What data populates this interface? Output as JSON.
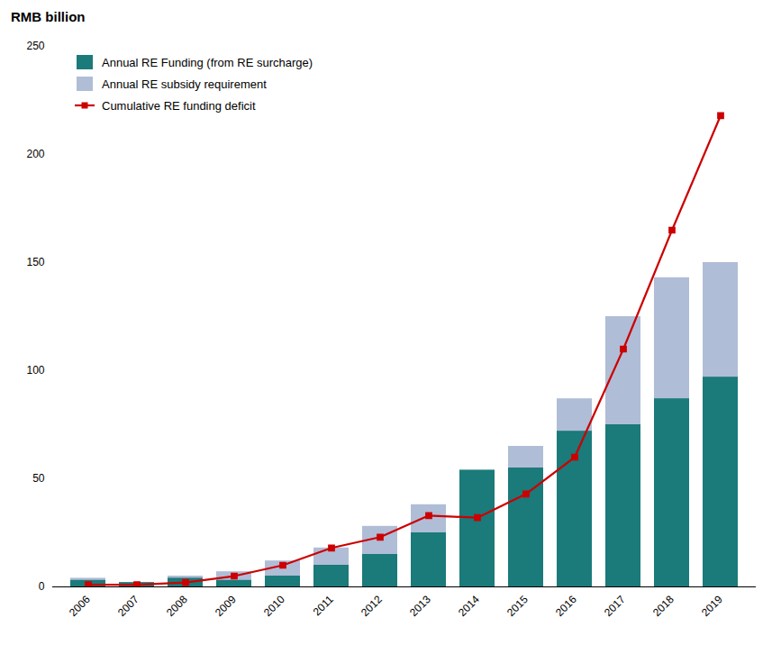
{
  "chart_data": {
    "type": "bar",
    "ylabel": "RMB billion",
    "categories": [
      "2006",
      "2007",
      "2008",
      "2009",
      "2010",
      "2011",
      "2012",
      "2013",
      "2014",
      "2015",
      "2016",
      "2017",
      "2018",
      "2019"
    ],
    "series": [
      {
        "name": "Annual RE Funding (from RE surcharge)",
        "type": "bar",
        "color": "#1b7a7a",
        "values": [
          3,
          2,
          4,
          3,
          5,
          10,
          15,
          25,
          54,
          55,
          72,
          75,
          87,
          97
        ]
      },
      {
        "name": "Annual RE subsidy requirement",
        "type": "bar",
        "color": "#b0bdd6",
        "values": [
          4,
          2,
          5,
          7,
          12,
          18,
          28,
          38,
          52,
          65,
          87,
          125,
          143,
          150
        ]
      },
      {
        "name": "Cumulative RE funding deficit",
        "type": "line",
        "color": "#cc0000",
        "marker": "square",
        "line_style": "solid",
        "values": [
          1,
          1,
          2,
          5,
          10,
          18,
          23,
          33,
          32,
          43,
          60,
          110,
          165,
          218
        ]
      }
    ],
    "ylim": [
      0,
      250
    ],
    "yticks": [
      0,
      50,
      100,
      150,
      200,
      250
    ],
    "stacked": false,
    "grid": false,
    "legend": "upper left"
  }
}
